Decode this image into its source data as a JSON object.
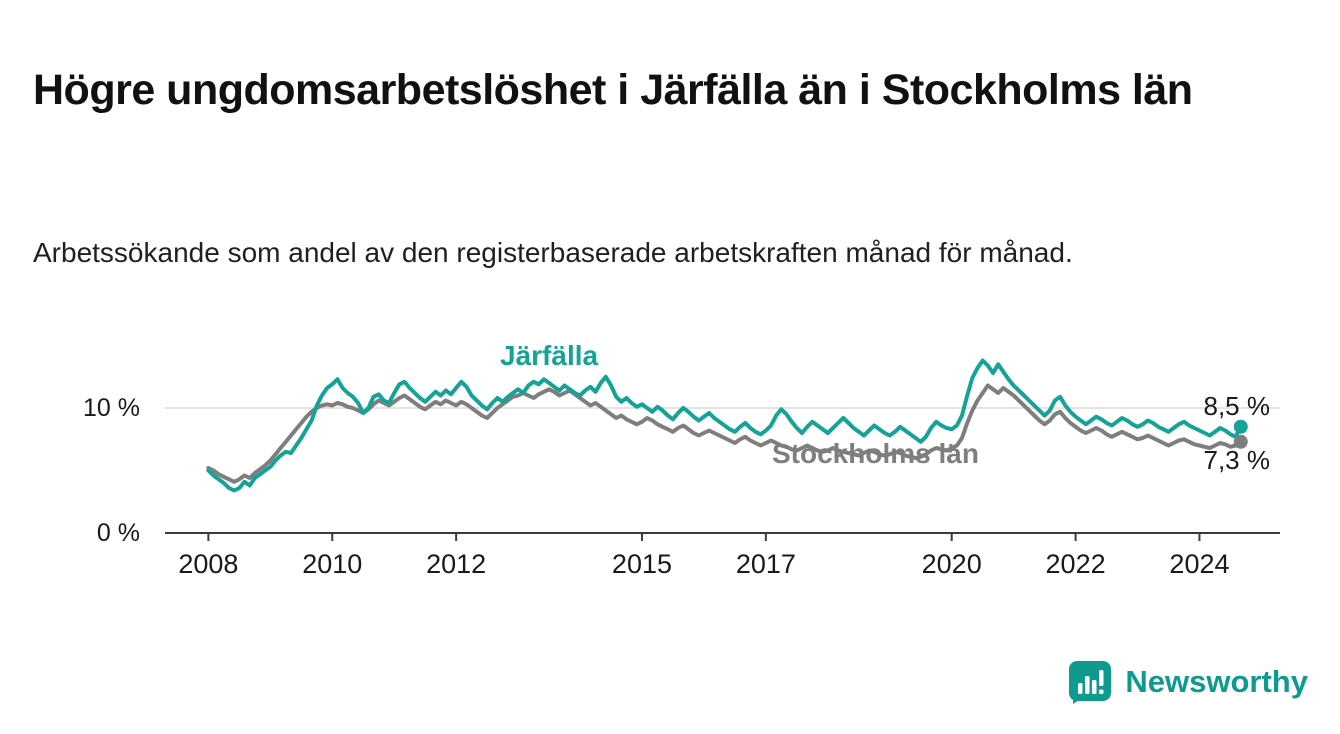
{
  "title": "Högre ungdomsarbetslöshet i Järfälla än i Stockholms län",
  "subtitle": "Arbetssökande som andel av den registerbaserade arbetskraften månad för månad.",
  "branding": {
    "logo_text": "Newsworthy",
    "logo_icon": "bar-chart-badge-icon",
    "brand_color": "#0f9a90"
  },
  "chart_data": {
    "type": "line",
    "title": "Högre ungdomsarbetslöshet i Järfälla än i Stockholms län",
    "subtitle": "Arbetssökande som andel av den registerbaserade arbetskraften månad för månad.",
    "unit": "%",
    "x_start": 2008.0,
    "x_step_months": 1,
    "xlim": [
      2007.3,
      2025.3
    ],
    "ylim": [
      0,
      16
    ],
    "grid": "single horizontal gridline at 10 %",
    "x_ticks": [
      "2008",
      "2010",
      "2012",
      "2015",
      "2017",
      "2020",
      "2022",
      "2024"
    ],
    "y_ticks": [
      {
        "value": 0,
        "label": "0 %"
      },
      {
        "value": 10,
        "label": "10 %"
      }
    ],
    "series": [
      {
        "name": "Järfälla",
        "color": "#14a396",
        "end_value": 8.5,
        "end_label": "8,5 %",
        "values": [
          5.0,
          4.6,
          4.3,
          4.0,
          3.6,
          3.4,
          3.6,
          4.1,
          3.8,
          4.4,
          4.7,
          5.0,
          5.3,
          5.8,
          6.2,
          6.5,
          6.4,
          7.0,
          7.6,
          8.3,
          9.0,
          10.2,
          11.0,
          11.6,
          11.9,
          12.3,
          11.6,
          11.2,
          10.9,
          10.4,
          9.6,
          10.0,
          10.9,
          11.1,
          10.6,
          10.4,
          11.2,
          11.9,
          12.1,
          11.6,
          11.2,
          10.8,
          10.5,
          10.9,
          11.3,
          11.0,
          11.4,
          11.1,
          11.6,
          12.1,
          11.7,
          11.0,
          10.6,
          10.2,
          9.9,
          10.4,
          10.8,
          10.5,
          10.9,
          11.2,
          11.5,
          11.2,
          11.8,
          12.1,
          11.9,
          12.3,
          12.0,
          11.7,
          11.4,
          11.8,
          11.5,
          11.2,
          11.0,
          11.4,
          11.7,
          11.3,
          12.0,
          12.5,
          11.8,
          10.9,
          10.5,
          10.8,
          10.4,
          10.1,
          10.3,
          10.0,
          9.7,
          10.1,
          9.8,
          9.4,
          9.1,
          9.6,
          10.0,
          9.7,
          9.3,
          9.0,
          9.3,
          9.6,
          9.2,
          8.9,
          8.6,
          8.3,
          8.1,
          8.5,
          8.8,
          8.4,
          8.1,
          7.9,
          8.2,
          8.6,
          9.4,
          9.9,
          9.5,
          8.9,
          8.4,
          8.0,
          8.5,
          8.9,
          8.6,
          8.3,
          8.0,
          8.4,
          8.8,
          9.2,
          8.8,
          8.4,
          8.1,
          7.8,
          8.2,
          8.6,
          8.3,
          8.0,
          7.8,
          8.1,
          8.5,
          8.2,
          7.9,
          7.6,
          7.3,
          7.7,
          8.4,
          8.9,
          8.6,
          8.4,
          8.3,
          8.6,
          9.4,
          11.0,
          12.4,
          13.2,
          13.8,
          13.4,
          12.8,
          13.5,
          12.9,
          12.3,
          11.8,
          11.4,
          11.0,
          10.6,
          10.2,
          9.8,
          9.4,
          9.8,
          10.6,
          10.9,
          10.2,
          9.7,
          9.3,
          9.0,
          8.7,
          9.0,
          9.3,
          9.1,
          8.8,
          8.6,
          8.9,
          9.2,
          9.0,
          8.7,
          8.5,
          8.7,
          9.0,
          8.8,
          8.5,
          8.3,
          8.1,
          8.4,
          8.7,
          8.9,
          8.6,
          8.4,
          8.2,
          8.0,
          7.8,
          8.1,
          8.4,
          8.2,
          7.9,
          7.7,
          8.5
        ]
      },
      {
        "name": "Stockholms län",
        "color": "#7e7e7e",
        "end_value": 7.3,
        "end_label": "7,3 %",
        "values": [
          5.2,
          5.0,
          4.7,
          4.5,
          4.3,
          4.1,
          4.3,
          4.6,
          4.4,
          4.8,
          5.1,
          5.4,
          5.8,
          6.3,
          6.8,
          7.3,
          7.8,
          8.3,
          8.8,
          9.3,
          9.7,
          10.0,
          10.2,
          10.3,
          10.2,
          10.4,
          10.3,
          10.1,
          10.0,
          9.8,
          9.6,
          9.9,
          10.3,
          10.6,
          10.4,
          10.2,
          10.5,
          10.8,
          11.0,
          10.7,
          10.4,
          10.1,
          9.9,
          10.2,
          10.5,
          10.3,
          10.6,
          10.4,
          10.2,
          10.5,
          10.3,
          10.0,
          9.7,
          9.4,
          9.2,
          9.6,
          10.0,
          10.3,
          10.6,
          10.9,
          11.0,
          11.2,
          11.0,
          10.8,
          11.1,
          11.3,
          11.5,
          11.3,
          11.0,
          11.2,
          11.4,
          11.1,
          10.8,
          10.5,
          10.2,
          10.4,
          10.1,
          9.8,
          9.5,
          9.2,
          9.4,
          9.1,
          8.9,
          8.7,
          8.9,
          9.2,
          9.0,
          8.7,
          8.5,
          8.3,
          8.1,
          8.4,
          8.6,
          8.3,
          8.0,
          7.8,
          8.0,
          8.2,
          8.0,
          7.8,
          7.6,
          7.4,
          7.2,
          7.5,
          7.7,
          7.4,
          7.2,
          7.0,
          7.2,
          7.4,
          7.2,
          7.0,
          6.9,
          6.7,
          6.6,
          6.8,
          7.0,
          6.8,
          6.6,
          6.5,
          6.6,
          6.8,
          6.6,
          6.5,
          6.4,
          6.3,
          6.2,
          6.4,
          6.6,
          6.5,
          6.3,
          6.2,
          6.3,
          6.5,
          6.4,
          6.2,
          6.1,
          6.0,
          6.1,
          6.3,
          6.6,
          6.8,
          6.7,
          6.6,
          6.8,
          7.0,
          7.6,
          8.8,
          9.8,
          10.6,
          11.2,
          11.8,
          11.5,
          11.2,
          11.6,
          11.3,
          11.0,
          10.6,
          10.2,
          9.8,
          9.4,
          9.0,
          8.7,
          9.0,
          9.5,
          9.7,
          9.2,
          8.8,
          8.5,
          8.2,
          8.0,
          8.2,
          8.4,
          8.2,
          7.9,
          7.7,
          7.9,
          8.1,
          7.9,
          7.7,
          7.5,
          7.6,
          7.8,
          7.6,
          7.4,
          7.2,
          7.0,
          7.2,
          7.4,
          7.5,
          7.3,
          7.1,
          7.0,
          6.9,
          6.8,
          7.0,
          7.2,
          7.1,
          6.9,
          7.0,
          7.3
        ]
      }
    ]
  }
}
